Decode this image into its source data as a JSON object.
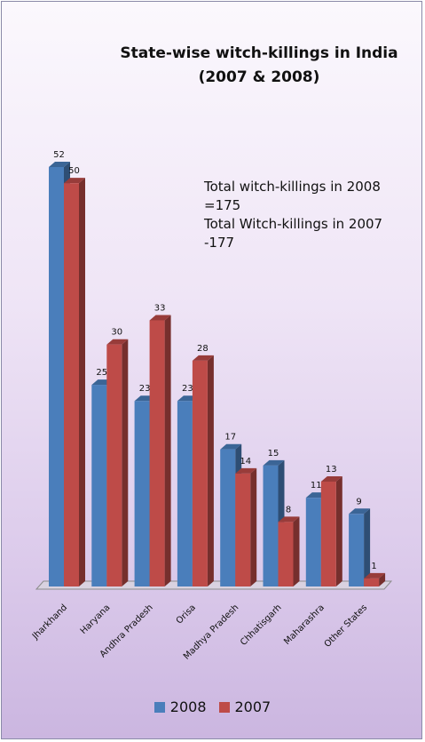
{
  "chart_data": {
    "type": "bar",
    "title_lines": [
      "State-wise witch-killings in India",
      "(2007 & 2008)"
    ],
    "categories": [
      "Jharkhand",
      "Haryana",
      "Andhra Pradesh",
      "Orisa",
      "Madhya Pradesh",
      "Chhatisgarh",
      "Maharashra",
      "Other States"
    ],
    "series": [
      {
        "name": "2008",
        "color": "#4a7ebb",
        "values": [
          52,
          25,
          23,
          23,
          17,
          15,
          11,
          9
        ]
      },
      {
        "name": "2007",
        "color": "#be4b48",
        "values": [
          50,
          30,
          33,
          28,
          14,
          8,
          13,
          1
        ]
      }
    ],
    "annotation_lines": [
      "Total witch-killings in 2008",
      "=175",
      "Total Witch-killings in 2007",
      "-177"
    ],
    "ylim": [
      0,
      52
    ],
    "grid": false,
    "legend_position": "bottom",
    "style": "3d-clustered-column"
  }
}
